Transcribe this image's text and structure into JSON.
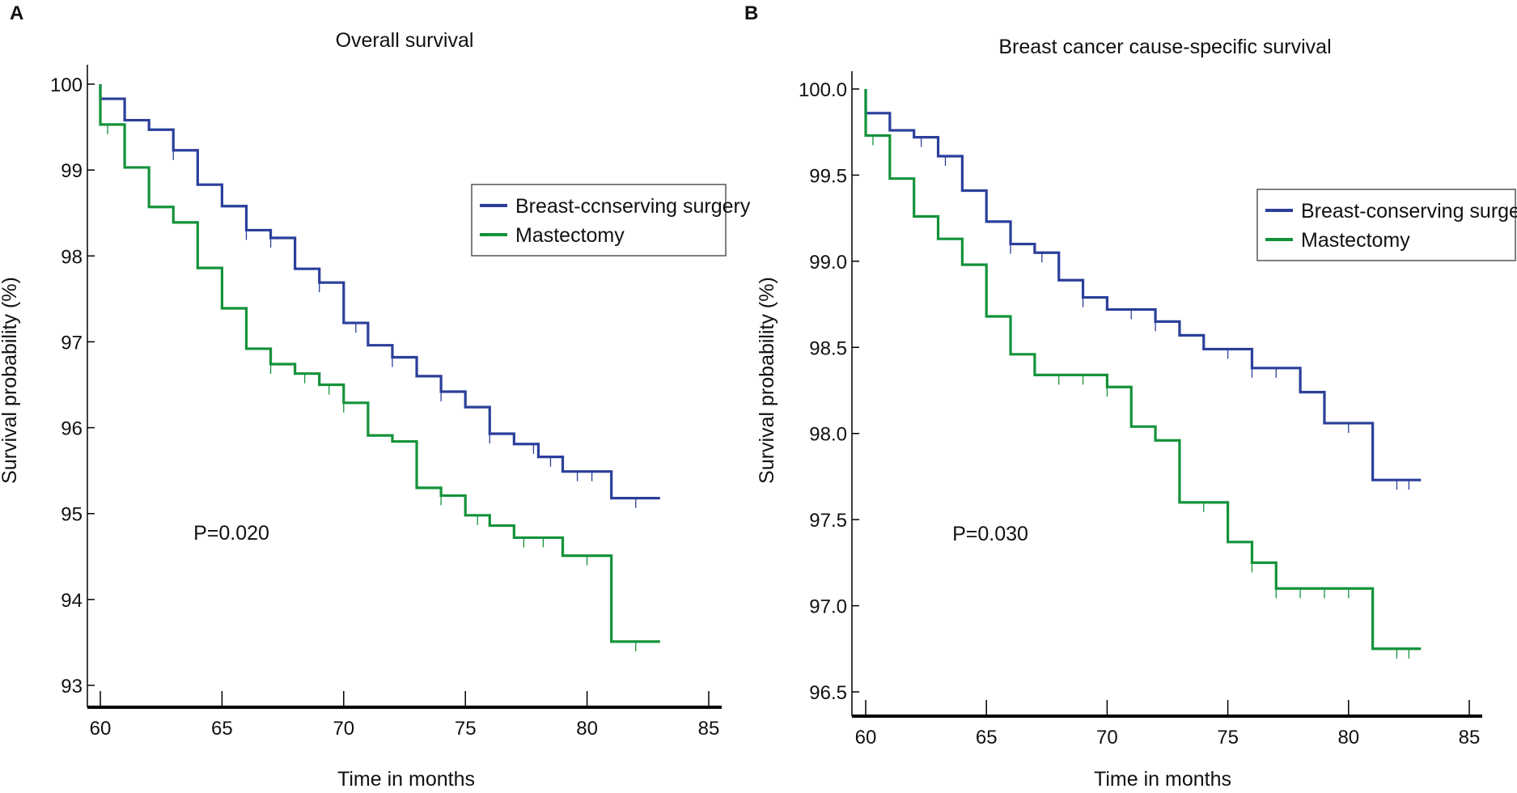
{
  "colors": {
    "bcs": "#2b3f9a",
    "mast": "#14923a",
    "axis": "#000000",
    "legend_border": "#555555"
  },
  "chart_data": [
    {
      "type": "line",
      "panel_letter": "A",
      "title": "Overall survival",
      "xlabel": "Time in months",
      "ylabel": "Survival probability (%)",
      "xlim": [
        60,
        85
      ],
      "ylim": [
        93,
        100
      ],
      "x_ticks": [
        "60",
        "65",
        "70",
        "75",
        "80",
        "85"
      ],
      "y_ticks": [
        "93",
        "94",
        "95",
        "96",
        "97",
        "98",
        "99",
        "100"
      ],
      "legend_position": "right",
      "p_value": "P=0.020",
      "series": [
        {
          "name": "Breast-ccnserving surgery",
          "color_key": "bcs",
          "steps": [
            [
              60,
              100
            ],
            [
              60,
              99.83
            ],
            [
              61,
              99.58
            ],
            [
              62,
              99.47
            ],
            [
              63,
              99.23
            ],
            [
              64,
              98.83
            ],
            [
              65,
              98.58
            ],
            [
              66,
              98.3
            ],
            [
              67,
              98.21
            ],
            [
              68,
              97.85
            ],
            [
              69,
              97.69
            ],
            [
              70,
              97.22
            ],
            [
              71,
              96.96
            ],
            [
              72,
              96.82
            ],
            [
              73,
              96.6
            ],
            [
              74,
              96.42
            ],
            [
              75,
              96.24
            ],
            [
              76,
              95.93
            ],
            [
              77,
              95.81
            ],
            [
              78,
              95.66
            ],
            [
              79,
              95.49
            ],
            [
              81,
              95.18
            ],
            [
              83,
              95.18
            ]
          ],
          "censors": [
            63,
            66,
            67,
            69,
            70.5,
            72,
            74,
            76,
            77.8,
            78.5,
            79.6,
            80.2,
            82
          ]
        },
        {
          "name": "Mastectomy",
          "color_key": "mast",
          "steps": [
            [
              60,
              100
            ],
            [
              60,
              99.53
            ],
            [
              61,
              99.03
            ],
            [
              62,
              98.57
            ],
            [
              63,
              98.39
            ],
            [
              64,
              97.86
            ],
            [
              65,
              97.39
            ],
            [
              66,
              96.92
            ],
            [
              67,
              96.74
            ],
            [
              68,
              96.63
            ],
            [
              69,
              96.5
            ],
            [
              70,
              96.29
            ],
            [
              71,
              95.91
            ],
            [
              72,
              95.84
            ],
            [
              73,
              95.3
            ],
            [
              74,
              95.21
            ],
            [
              75,
              94.98
            ],
            [
              76,
              94.86
            ],
            [
              77,
              94.72
            ],
            [
              79,
              94.51
            ],
            [
              81,
              93.51
            ],
            [
              83,
              93.51
            ]
          ],
          "censors": [
            60.3,
            67,
            68.4,
            69.4,
            70,
            74,
            75.5,
            77.4,
            78.2,
            80,
            82
          ]
        }
      ]
    },
    {
      "type": "line",
      "panel_letter": "B",
      "title": "Breast cancer cause-specific survival",
      "xlabel": "Time in months",
      "ylabel": "Survival probability (%)",
      "xlim": [
        60,
        85
      ],
      "ylim": [
        96.5,
        100
      ],
      "x_ticks": [
        "60",
        "65",
        "70",
        "75",
        "80",
        "85"
      ],
      "y_ticks": [
        "96.5",
        "97.0",
        "97.5",
        "98.0",
        "98.5",
        "99.0",
        "99.5",
        "100.0"
      ],
      "legend_position": "right",
      "p_value": "P=0.030",
      "series": [
        {
          "name": "Breast-conserving surgery",
          "color_key": "bcs",
          "steps": [
            [
              60,
              100
            ],
            [
              60,
              99.86
            ],
            [
              61,
              99.76
            ],
            [
              62,
              99.72
            ],
            [
              63,
              99.61
            ],
            [
              64,
              99.41
            ],
            [
              65,
              99.23
            ],
            [
              66,
              99.1
            ],
            [
              67,
              99.05
            ],
            [
              68,
              98.89
            ],
            [
              69,
              98.79
            ],
            [
              70,
              98.72
            ],
            [
              72,
              98.65
            ],
            [
              73,
              98.57
            ],
            [
              74,
              98.49
            ],
            [
              76,
              98.38
            ],
            [
              78,
              98.24
            ],
            [
              79,
              98.06
            ],
            [
              81,
              97.73
            ],
            [
              83,
              97.73
            ]
          ],
          "censors": [
            62.3,
            63.3,
            66,
            67.3,
            69,
            71,
            72,
            75,
            76,
            77,
            80,
            82,
            82.5
          ]
        },
        {
          "name": "Mastectomy",
          "color_key": "mast",
          "steps": [
            [
              60,
              100
            ],
            [
              60,
              99.73
            ],
            [
              61,
              99.48
            ],
            [
              62,
              99.26
            ],
            [
              63,
              99.13
            ],
            [
              64,
              98.98
            ],
            [
              65,
              98.68
            ],
            [
              66,
              98.46
            ],
            [
              67,
              98.34
            ],
            [
              70,
              98.27
            ],
            [
              71,
              98.04
            ],
            [
              72,
              97.96
            ],
            [
              73,
              97.6
            ],
            [
              75,
              97.37
            ],
            [
              76,
              97.25
            ],
            [
              77,
              97.1
            ],
            [
              81,
              96.75
            ],
            [
              83,
              96.75
            ]
          ],
          "censors": [
            60.3,
            68,
            69,
            70,
            74,
            76,
            77,
            78,
            79,
            80,
            82,
            82.5
          ]
        }
      ]
    }
  ]
}
